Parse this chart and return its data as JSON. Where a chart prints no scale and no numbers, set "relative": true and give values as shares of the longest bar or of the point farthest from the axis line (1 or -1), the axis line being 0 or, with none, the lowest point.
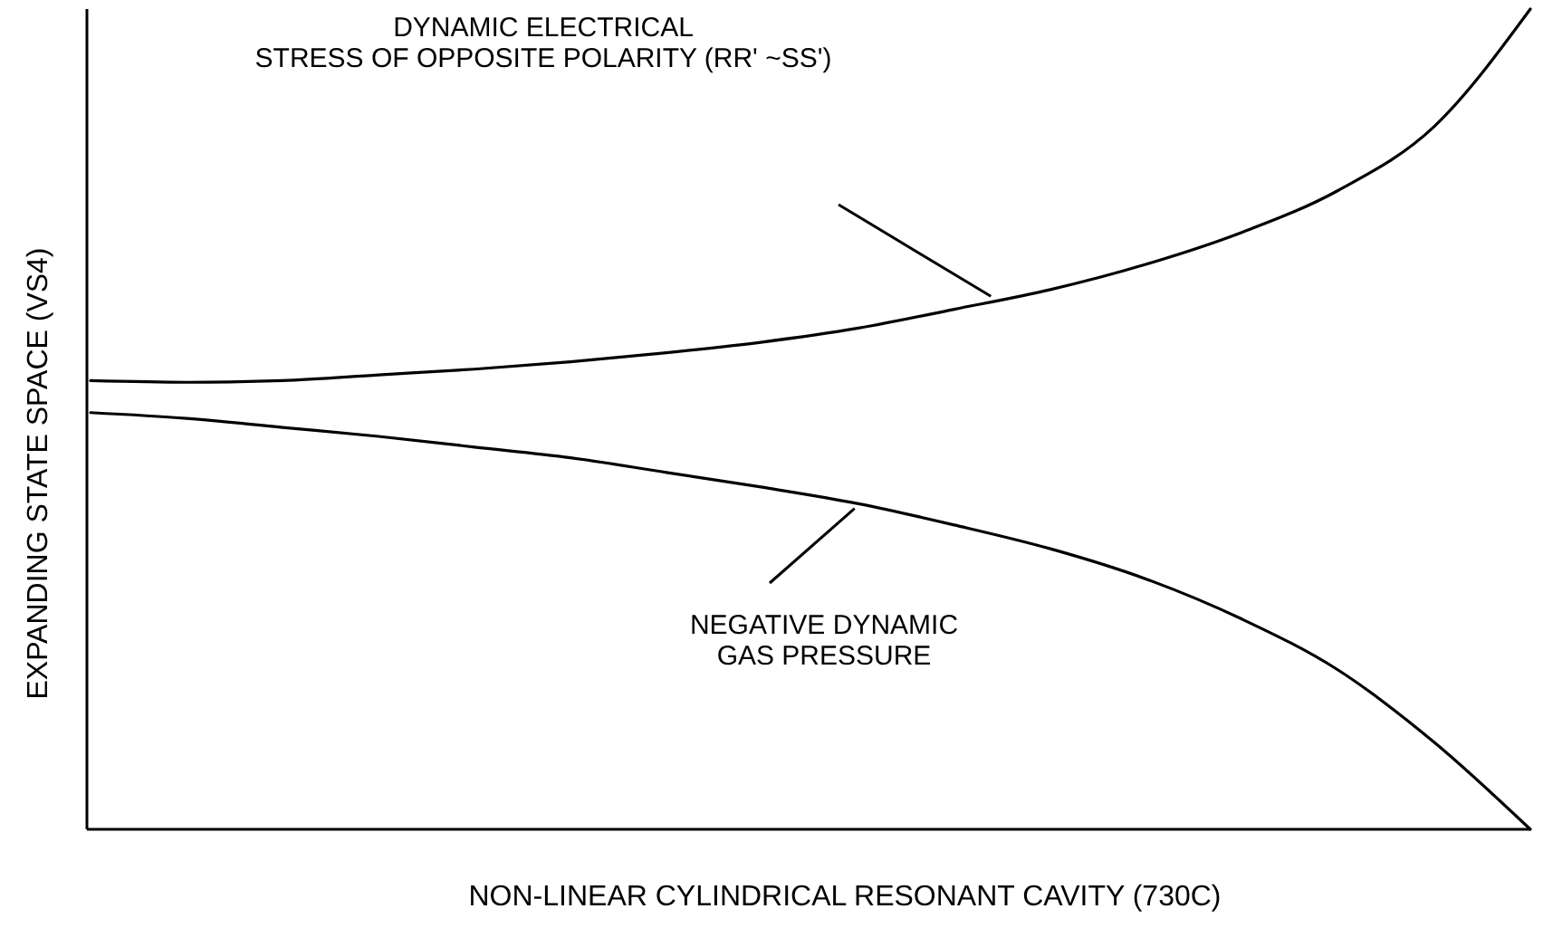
{
  "chart_data": {
    "type": "line",
    "relative": true,
    "xlabel": "NON-LINEAR CYLINDRICAL RESONANT CAVITY (730C)",
    "ylabel": "EXPANDING STATE SPACE (VS4)",
    "categories": [
      null,
      null,
      null,
      null,
      null,
      null,
      null,
      null,
      null,
      null,
      null,
      null,
      null,
      null,
      null,
      null
    ],
    "series": [
      {
        "color": "#000000",
        "values": [
          0.547,
          0.545,
          0.547,
          0.554,
          0.561,
          0.57,
          0.581,
          0.594,
          0.611,
          0.634,
          0.658,
          0.689,
          0.728,
          0.779,
          0.857,
          1
        ]
      },
      {
        "color": "#000000",
        "values": [
          0.508,
          0.501,
          0.49,
          0.479,
          0.466,
          0.453,
          0.435,
          0.417,
          0.397,
          0.371,
          0.342,
          0.305,
          0.256,
          0.194,
          0.106,
          0
        ]
      }
    ],
    "annotations": [
      "DYNAMIC ELECTRICAL\nSTRESS OF OPPOSITE POLARITY (RR' ~SS')",
      "NEGATIVE DYNAMIC\nGAS PRESSURE"
    ]
  }
}
